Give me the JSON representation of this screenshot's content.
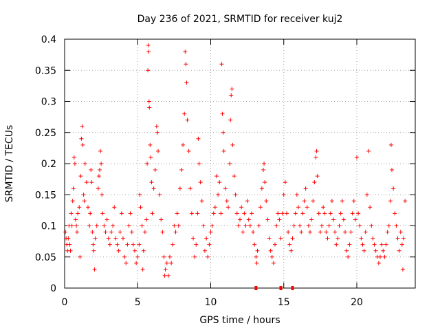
{
  "chart_data": {
    "type": "scatter",
    "title": "Day 236 of 2021, SRMTID for receiver kuj2",
    "xlabel": "GPS time / hours",
    "ylabel": "SRMTID / TECUs",
    "xlim": [
      0,
      24
    ],
    "ylim": [
      0,
      0.4
    ],
    "xticks": [
      0,
      5,
      10,
      15,
      20
    ],
    "xtick_labels": [
      "0",
      "5",
      "10",
      "15",
      "20"
    ],
    "yticks": [
      0,
      0.05,
      0.1,
      0.15,
      0.2,
      0.25,
      0.3,
      0.35,
      0.4
    ],
    "ytick_labels": [
      "0",
      "0.05",
      "0.1",
      "0.15",
      "0.2",
      "0.25",
      "0.3",
      "0.35",
      "0.4"
    ],
    "grid": true,
    "marker": "plus",
    "series": [
      {
        "name": "SRMTID",
        "color": "#ff0000",
        "points": [
          [
            0.05,
            0.09
          ],
          [
            0.1,
            0.08
          ],
          [
            0.15,
            0.07
          ],
          [
            0.2,
            0.06
          ],
          [
            0.25,
            0.08
          ],
          [
            0.3,
            0.1
          ],
          [
            0.35,
            0.07
          ],
          [
            0.4,
            0.06
          ],
          [
            0.45,
            0.12
          ],
          [
            0.5,
            0.1
          ],
          [
            0.55,
            0.14
          ],
          [
            0.6,
            0.16
          ],
          [
            0.65,
            0.21
          ],
          [
            0.7,
            0.2
          ],
          [
            0.75,
            0.11
          ],
          [
            0.8,
            0.1
          ],
          [
            0.85,
            0.09
          ],
          [
            0.9,
            0.12
          ],
          [
            1.0,
            0.13
          ],
          [
            1.05,
            0.05
          ],
          [
            1.1,
            0.18
          ],
          [
            1.15,
            0.24
          ],
          [
            1.2,
            0.26
          ],
          [
            1.25,
            0.23
          ],
          [
            1.3,
            0.15
          ],
          [
            1.35,
            0.14
          ],
          [
            1.4,
            0.2
          ],
          [
            1.5,
            0.17
          ],
          [
            1.6,
            0.13
          ],
          [
            1.7,
            0.1
          ],
          [
            1.75,
            0.12
          ],
          [
            1.8,
            0.19
          ],
          [
            1.85,
            0.17
          ],
          [
            1.9,
            0.09
          ],
          [
            1.95,
            0.07
          ],
          [
            2.0,
            0.06
          ],
          [
            2.05,
            0.03
          ],
          [
            2.1,
            0.08
          ],
          [
            2.2,
            0.1
          ],
          [
            2.3,
            0.16
          ],
          [
            2.35,
            0.18
          ],
          [
            2.4,
            0.19
          ],
          [
            2.45,
            0.22
          ],
          [
            2.5,
            0.2
          ],
          [
            2.55,
            0.15
          ],
          [
            2.6,
            0.12
          ],
          [
            2.7,
            0.1
          ],
          [
            2.8,
            0.09
          ],
          [
            2.9,
            0.11
          ],
          [
            3.0,
            0.08
          ],
          [
            3.1,
            0.07
          ],
          [
            3.2,
            0.09
          ],
          [
            3.3,
            0.1
          ],
          [
            3.4,
            0.13
          ],
          [
            3.5,
            0.08
          ],
          [
            3.6,
            0.07
          ],
          [
            3.7,
            0.06
          ],
          [
            3.8,
            0.09
          ],
          [
            3.9,
            0.12
          ],
          [
            4.0,
            0.08
          ],
          [
            4.1,
            0.05
          ],
          [
            4.2,
            0.04
          ],
          [
            4.3,
            0.07
          ],
          [
            4.4,
            0.1
          ],
          [
            4.5,
            0.12
          ],
          [
            4.6,
            0.09
          ],
          [
            4.7,
            0.07
          ],
          [
            4.8,
            0.06
          ],
          [
            4.9,
            0.04
          ],
          [
            5.0,
            0.05
          ],
          [
            5.1,
            0.07
          ],
          [
            5.15,
            0.15
          ],
          [
            5.2,
            0.13
          ],
          [
            5.3,
            0.1
          ],
          [
            5.35,
            0.03
          ],
          [
            5.4,
            0.06
          ],
          [
            5.5,
            0.09
          ],
          [
            5.6,
            0.11
          ],
          [
            5.65,
            0.2
          ],
          [
            5.7,
            0.35
          ],
          [
            5.72,
            0.39
          ],
          [
            5.75,
            0.38
          ],
          [
            5.78,
            0.3
          ],
          [
            5.8,
            0.29
          ],
          [
            5.85,
            0.23
          ],
          [
            5.9,
            0.21
          ],
          [
            5.95,
            0.17
          ],
          [
            6.0,
            0.12
          ],
          [
            6.1,
            0.16
          ],
          [
            6.2,
            0.19
          ],
          [
            6.3,
            0.26
          ],
          [
            6.35,
            0.25
          ],
          [
            6.4,
            0.22
          ],
          [
            6.5,
            0.15
          ],
          [
            6.6,
            0.11
          ],
          [
            6.7,
            0.09
          ],
          [
            6.8,
            0.05
          ],
          [
            6.85,
            0.02
          ],
          [
            6.9,
            0.03
          ],
          [
            7.0,
            0.04
          ],
          [
            7.1,
            0.02
          ],
          [
            7.2,
            0.05
          ],
          [
            7.3,
            0.04
          ],
          [
            7.4,
            0.07
          ],
          [
            7.5,
            0.1
          ],
          [
            7.6,
            0.09
          ],
          [
            7.7,
            0.12
          ],
          [
            7.8,
            0.1
          ],
          [
            7.9,
            0.16
          ],
          [
            8.0,
            0.19
          ],
          [
            8.1,
            0.23
          ],
          [
            8.2,
            0.28
          ],
          [
            8.25,
            0.38
          ],
          [
            8.3,
            0.36
          ],
          [
            8.35,
            0.33
          ],
          [
            8.4,
            0.27
          ],
          [
            8.5,
            0.22
          ],
          [
            8.6,
            0.16
          ],
          [
            8.7,
            0.12
          ],
          [
            8.8,
            0.08
          ],
          [
            8.9,
            0.05
          ],
          [
            9.0,
            0.07
          ],
          [
            9.1,
            0.12
          ],
          [
            9.15,
            0.24
          ],
          [
            9.2,
            0.2
          ],
          [
            9.3,
            0.17
          ],
          [
            9.4,
            0.14
          ],
          [
            9.5,
            0.1
          ],
          [
            9.6,
            0.06
          ],
          [
            9.7,
            0.08
          ],
          [
            9.8,
            0.05
          ],
          [
            9.9,
            0.07
          ],
          [
            10.0,
            0.09
          ],
          [
            10.1,
            0.1
          ],
          [
            10.2,
            0.12
          ],
          [
            10.3,
            0.13
          ],
          [
            10.4,
            0.18
          ],
          [
            10.5,
            0.15
          ],
          [
            10.6,
            0.17
          ],
          [
            10.7,
            0.12
          ],
          [
            10.75,
            0.36
          ],
          [
            10.8,
            0.28
          ],
          [
            10.85,
            0.25
          ],
          [
            10.9,
            0.22
          ],
          [
            11.0,
            0.16
          ],
          [
            11.1,
            0.14
          ],
          [
            11.2,
            0.13
          ],
          [
            11.3,
            0.2
          ],
          [
            11.35,
            0.27
          ],
          [
            11.4,
            0.31
          ],
          [
            11.45,
            0.32
          ],
          [
            11.5,
            0.23
          ],
          [
            11.6,
            0.18
          ],
          [
            11.7,
            0.15
          ],
          [
            11.8,
            0.12
          ],
          [
            11.9,
            0.1
          ],
          [
            12.0,
            0.11
          ],
          [
            12.1,
            0.13
          ],
          [
            12.2,
            0.09
          ],
          [
            12.3,
            0.12
          ],
          [
            12.4,
            0.1
          ],
          [
            12.5,
            0.14
          ],
          [
            12.6,
            0.11
          ],
          [
            12.7,
            0.1
          ],
          [
            12.8,
            0.12
          ],
          [
            12.9,
            0.09
          ],
          [
            13.0,
            0.07
          ],
          [
            13.1,
            0.05
          ],
          [
            13.15,
            0.04
          ],
          [
            13.2,
            0.06
          ],
          [
            13.3,
            0.1
          ],
          [
            13.4,
            0.13
          ],
          [
            13.5,
            0.16
          ],
          [
            13.6,
            0.19
          ],
          [
            13.65,
            0.2
          ],
          [
            13.7,
            0.17
          ],
          [
            13.8,
            0.14
          ],
          [
            13.9,
            0.11
          ],
          [
            14.0,
            0.08
          ],
          [
            14.1,
            0.06
          ],
          [
            14.2,
            0.05
          ],
          [
            14.3,
            0.04
          ],
          [
            14.4,
            0.07
          ],
          [
            14.5,
            0.1
          ],
          [
            14.6,
            0.12
          ],
          [
            14.7,
            0.11
          ],
          [
            14.8,
            0.08
          ],
          [
            14.9,
            0.12
          ],
          [
            15.0,
            0.15
          ],
          [
            15.1,
            0.17
          ],
          [
            15.2,
            0.12
          ],
          [
            15.3,
            0.09
          ],
          [
            15.4,
            0.07
          ],
          [
            15.5,
            0.06
          ],
          [
            15.6,
            0.08
          ],
          [
            15.7,
            0.1
          ],
          [
            15.8,
            0.12
          ],
          [
            15.9,
            0.15
          ],
          [
            16.0,
            0.13
          ],
          [
            16.1,
            0.1
          ],
          [
            16.2,
            0.09
          ],
          [
            16.3,
            0.12
          ],
          [
            16.4,
            0.14
          ],
          [
            16.5,
            0.16
          ],
          [
            16.6,
            0.13
          ],
          [
            16.7,
            0.1
          ],
          [
            16.8,
            0.09
          ],
          [
            16.9,
            0.11
          ],
          [
            17.0,
            0.14
          ],
          [
            17.1,
            0.17
          ],
          [
            17.2,
            0.21
          ],
          [
            17.25,
            0.22
          ],
          [
            17.3,
            0.18
          ],
          [
            17.4,
            0.12
          ],
          [
            17.5,
            0.09
          ],
          [
            17.6,
            0.1
          ],
          [
            17.7,
            0.13
          ],
          [
            17.8,
            0.12
          ],
          [
            17.9,
            0.09
          ],
          [
            18.0,
            0.08
          ],
          [
            18.1,
            0.1
          ],
          [
            18.2,
            0.12
          ],
          [
            18.3,
            0.14
          ],
          [
            18.4,
            0.11
          ],
          [
            18.5,
            0.09
          ],
          [
            18.6,
            0.07
          ],
          [
            18.7,
            0.08
          ],
          [
            18.8,
            0.1
          ],
          [
            18.9,
            0.12
          ],
          [
            19.0,
            0.14
          ],
          [
            19.1,
            0.11
          ],
          [
            19.2,
            0.09
          ],
          [
            19.3,
            0.06
          ],
          [
            19.4,
            0.05
          ],
          [
            19.5,
            0.07
          ],
          [
            19.6,
            0.09
          ],
          [
            19.7,
            0.12
          ],
          [
            19.8,
            0.14
          ],
          [
            19.9,
            0.11
          ],
          [
            20.0,
            0.21
          ],
          [
            20.1,
            0.12
          ],
          [
            20.2,
            0.1
          ],
          [
            20.3,
            0.08
          ],
          [
            20.4,
            0.07
          ],
          [
            20.5,
            0.06
          ],
          [
            20.6,
            0.09
          ],
          [
            20.7,
            0.15
          ],
          [
            20.8,
            0.22
          ],
          [
            20.9,
            0.13
          ],
          [
            21.0,
            0.1
          ],
          [
            21.1,
            0.08
          ],
          [
            21.2,
            0.07
          ],
          [
            21.3,
            0.06
          ],
          [
            21.4,
            0.05
          ],
          [
            21.5,
            0.04
          ],
          [
            21.6,
            0.05
          ],
          [
            21.7,
            0.07
          ],
          [
            21.8,
            0.06
          ],
          [
            21.9,
            0.05
          ],
          [
            22.0,
            0.07
          ],
          [
            22.1,
            0.09
          ],
          [
            22.2,
            0.1
          ],
          [
            22.3,
            0.14
          ],
          [
            22.35,
            0.23
          ],
          [
            22.4,
            0.19
          ],
          [
            22.5,
            0.16
          ],
          [
            22.6,
            0.12
          ],
          [
            22.7,
            0.1
          ],
          [
            22.8,
            0.08
          ],
          [
            22.9,
            0.06
          ],
          [
            23.0,
            0.09
          ],
          [
            23.1,
            0.07
          ],
          [
            23.15,
            0.03
          ],
          [
            23.2,
            0.08
          ],
          [
            23.3,
            0.14
          ]
        ]
      }
    ],
    "zero_markers": [
      13.1,
      14.8,
      15.6
    ]
  }
}
